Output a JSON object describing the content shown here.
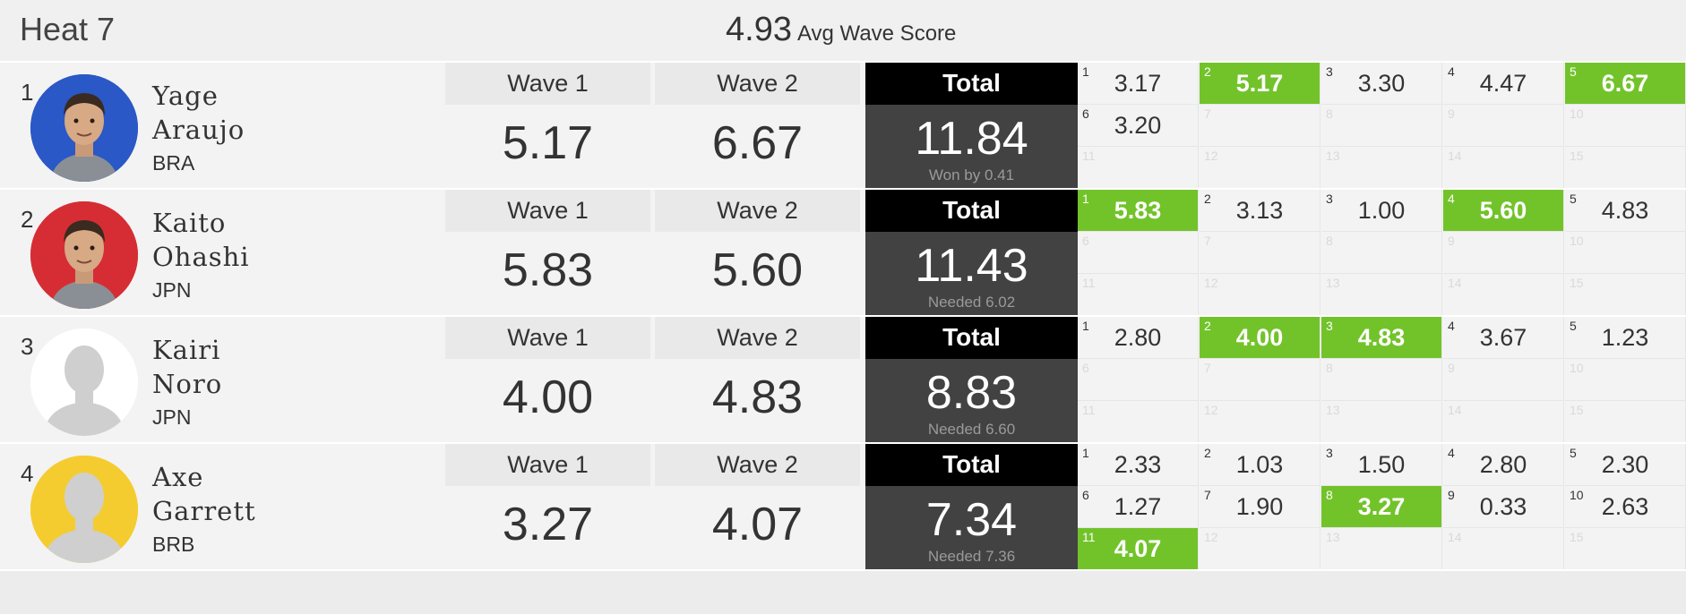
{
  "heat": {
    "title": "Heat 7",
    "avg_value": "4.93",
    "avg_label": "Avg Wave Score"
  },
  "colors": {
    "highlight": "#72c32a",
    "total_header": "#000000",
    "total_body": "#424242"
  },
  "surfers": [
    {
      "rank": "1",
      "first": "Yage",
      "last": "Araujo",
      "country": "BRA",
      "avatar": {
        "type": "photo",
        "bg": "#2a58c6",
        "icon": "surfer-photo-icon"
      },
      "wave1_label": "Wave 1",
      "wave1": "5.17",
      "wave2_label": "Wave 2",
      "wave2": "6.67",
      "total_label": "Total",
      "total": "11.84",
      "note": "Won by 0.41",
      "waves": [
        {
          "n": "1",
          "v": "3.17",
          "hi": false
        },
        {
          "n": "2",
          "v": "5.17",
          "hi": true
        },
        {
          "n": "3",
          "v": "3.30",
          "hi": false
        },
        {
          "n": "4",
          "v": "4.47",
          "hi": false
        },
        {
          "n": "5",
          "v": "6.67",
          "hi": true
        },
        {
          "n": "6",
          "v": "3.20",
          "hi": false
        },
        {
          "n": "7",
          "v": "",
          "hi": false
        },
        {
          "n": "8",
          "v": "",
          "hi": false
        },
        {
          "n": "9",
          "v": "",
          "hi": false
        },
        {
          "n": "10",
          "v": "",
          "hi": false
        },
        {
          "n": "11",
          "v": "",
          "hi": false
        },
        {
          "n": "12",
          "v": "",
          "hi": false
        },
        {
          "n": "13",
          "v": "",
          "hi": false
        },
        {
          "n": "14",
          "v": "",
          "hi": false
        },
        {
          "n": "15",
          "v": "",
          "hi": false
        }
      ]
    },
    {
      "rank": "2",
      "first": "Kaito",
      "last": "Ohashi",
      "country": "JPN",
      "avatar": {
        "type": "photo",
        "bg": "#d62d35",
        "icon": "surfer-photo-icon"
      },
      "wave1_label": "Wave 1",
      "wave1": "5.83",
      "wave2_label": "Wave 2",
      "wave2": "5.60",
      "total_label": "Total",
      "total": "11.43",
      "note": "Needed 6.02",
      "waves": [
        {
          "n": "1",
          "v": "5.83",
          "hi": true
        },
        {
          "n": "2",
          "v": "3.13",
          "hi": false
        },
        {
          "n": "3",
          "v": "1.00",
          "hi": false
        },
        {
          "n": "4",
          "v": "5.60",
          "hi": true
        },
        {
          "n": "5",
          "v": "4.83",
          "hi": false
        },
        {
          "n": "6",
          "v": "",
          "hi": false
        },
        {
          "n": "7",
          "v": "",
          "hi": false
        },
        {
          "n": "8",
          "v": "",
          "hi": false
        },
        {
          "n": "9",
          "v": "",
          "hi": false
        },
        {
          "n": "10",
          "v": "",
          "hi": false
        },
        {
          "n": "11",
          "v": "",
          "hi": false
        },
        {
          "n": "12",
          "v": "",
          "hi": false
        },
        {
          "n": "13",
          "v": "",
          "hi": false
        },
        {
          "n": "14",
          "v": "",
          "hi": false
        },
        {
          "n": "15",
          "v": "",
          "hi": false
        }
      ]
    },
    {
      "rank": "3",
      "first": "Kairi",
      "last": "Noro",
      "country": "JPN",
      "avatar": {
        "type": "placeholder",
        "bg": "#ffffff",
        "icon": "avatar-placeholder-icon"
      },
      "wave1_label": "Wave 1",
      "wave1": "4.00",
      "wave2_label": "Wave 2",
      "wave2": "4.83",
      "total_label": "Total",
      "total": "8.83",
      "note": "Needed 6.60",
      "waves": [
        {
          "n": "1",
          "v": "2.80",
          "hi": false
        },
        {
          "n": "2",
          "v": "4.00",
          "hi": true
        },
        {
          "n": "3",
          "v": "4.83",
          "hi": true
        },
        {
          "n": "4",
          "v": "3.67",
          "hi": false
        },
        {
          "n": "5",
          "v": "1.23",
          "hi": false
        },
        {
          "n": "6",
          "v": "",
          "hi": false
        },
        {
          "n": "7",
          "v": "",
          "hi": false
        },
        {
          "n": "8",
          "v": "",
          "hi": false
        },
        {
          "n": "9",
          "v": "",
          "hi": false
        },
        {
          "n": "10",
          "v": "",
          "hi": false
        },
        {
          "n": "11",
          "v": "",
          "hi": false
        },
        {
          "n": "12",
          "v": "",
          "hi": false
        },
        {
          "n": "13",
          "v": "",
          "hi": false
        },
        {
          "n": "14",
          "v": "",
          "hi": false
        },
        {
          "n": "15",
          "v": "",
          "hi": false
        }
      ]
    },
    {
      "rank": "4",
      "first": "Axe",
      "last": "Garrett",
      "country": "BRB",
      "avatar": {
        "type": "placeholder",
        "bg": "#f4cc2f",
        "icon": "avatar-placeholder-icon"
      },
      "wave1_label": "Wave 1",
      "wave1": "3.27",
      "wave2_label": "Wave 2",
      "wave2": "4.07",
      "total_label": "Total",
      "total": "7.34",
      "note": "Needed 7.36",
      "waves": [
        {
          "n": "1",
          "v": "2.33",
          "hi": false
        },
        {
          "n": "2",
          "v": "1.03",
          "hi": false
        },
        {
          "n": "3",
          "v": "1.50",
          "hi": false
        },
        {
          "n": "4",
          "v": "2.80",
          "hi": false
        },
        {
          "n": "5",
          "v": "2.30",
          "hi": false
        },
        {
          "n": "6",
          "v": "1.27",
          "hi": false
        },
        {
          "n": "7",
          "v": "1.90",
          "hi": false
        },
        {
          "n": "8",
          "v": "3.27",
          "hi": true
        },
        {
          "n": "9",
          "v": "0.33",
          "hi": false
        },
        {
          "n": "10",
          "v": "2.63",
          "hi": false
        },
        {
          "n": "11",
          "v": "4.07",
          "hi": true
        },
        {
          "n": "12",
          "v": "",
          "hi": false
        },
        {
          "n": "13",
          "v": "",
          "hi": false
        },
        {
          "n": "14",
          "v": "",
          "hi": false
        },
        {
          "n": "15",
          "v": "",
          "hi": false
        }
      ]
    }
  ]
}
